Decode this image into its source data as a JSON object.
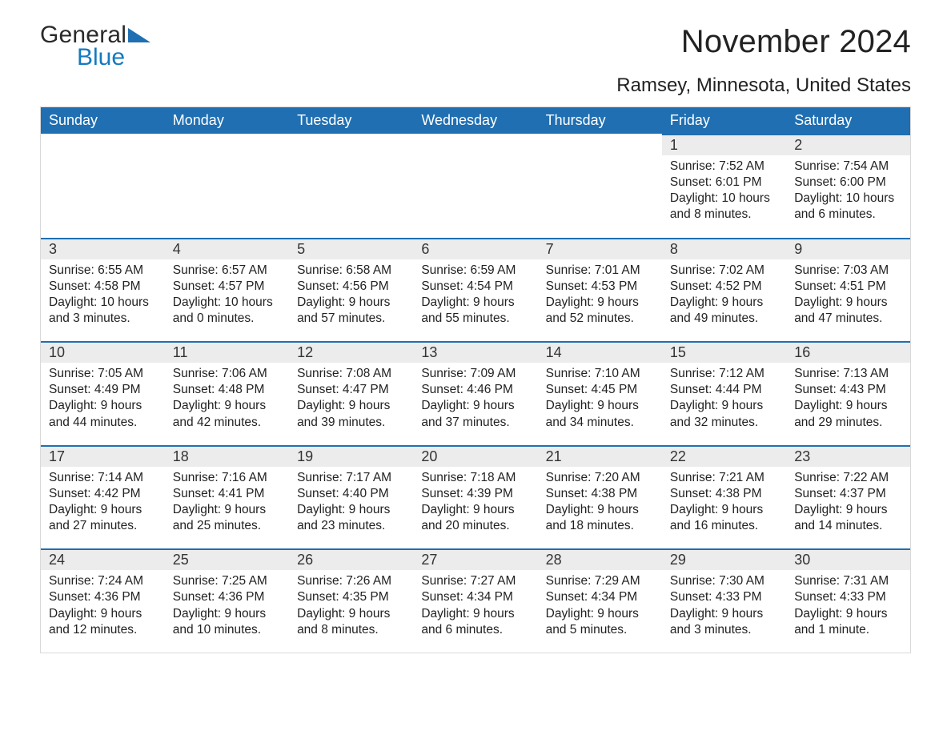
{
  "logo": {
    "word1": "General",
    "word2": "Blue",
    "mark_color": "#1f6fb2",
    "text_dark": "#2a2a2a",
    "text_blue": "#147ac0"
  },
  "title": "November 2024",
  "location": "Ramsey, Minnesota, United States",
  "style": {
    "header_bg": "#1f6fb2",
    "header_text": "#ffffff",
    "daybar_bg": "#ececec",
    "daybar_border": "#1f6fb2",
    "body_bg": "#ffffff",
    "text_color": "#222222",
    "title_fontsize": 40,
    "location_fontsize": 24,
    "th_fontsize": 18,
    "daynum_fontsize": 18,
    "body_fontsize": 15.5
  },
  "columns": [
    "Sunday",
    "Monday",
    "Tuesday",
    "Wednesday",
    "Thursday",
    "Friday",
    "Saturday"
  ],
  "weeks": [
    [
      null,
      null,
      null,
      null,
      null,
      {
        "n": "1",
        "sunrise": "Sunrise: 7:52 AM",
        "sunset": "Sunset: 6:01 PM",
        "day1": "Daylight: 10 hours",
        "day2": "and 8 minutes."
      },
      {
        "n": "2",
        "sunrise": "Sunrise: 7:54 AM",
        "sunset": "Sunset: 6:00 PM",
        "day1": "Daylight: 10 hours",
        "day2": "and 6 minutes."
      }
    ],
    [
      {
        "n": "3",
        "sunrise": "Sunrise: 6:55 AM",
        "sunset": "Sunset: 4:58 PM",
        "day1": "Daylight: 10 hours",
        "day2": "and 3 minutes."
      },
      {
        "n": "4",
        "sunrise": "Sunrise: 6:57 AM",
        "sunset": "Sunset: 4:57 PM",
        "day1": "Daylight: 10 hours",
        "day2": "and 0 minutes."
      },
      {
        "n": "5",
        "sunrise": "Sunrise: 6:58 AM",
        "sunset": "Sunset: 4:56 PM",
        "day1": "Daylight: 9 hours",
        "day2": "and 57 minutes."
      },
      {
        "n": "6",
        "sunrise": "Sunrise: 6:59 AM",
        "sunset": "Sunset: 4:54 PM",
        "day1": "Daylight: 9 hours",
        "day2": "and 55 minutes."
      },
      {
        "n": "7",
        "sunrise": "Sunrise: 7:01 AM",
        "sunset": "Sunset: 4:53 PM",
        "day1": "Daylight: 9 hours",
        "day2": "and 52 minutes."
      },
      {
        "n": "8",
        "sunrise": "Sunrise: 7:02 AM",
        "sunset": "Sunset: 4:52 PM",
        "day1": "Daylight: 9 hours",
        "day2": "and 49 minutes."
      },
      {
        "n": "9",
        "sunrise": "Sunrise: 7:03 AM",
        "sunset": "Sunset: 4:51 PM",
        "day1": "Daylight: 9 hours",
        "day2": "and 47 minutes."
      }
    ],
    [
      {
        "n": "10",
        "sunrise": "Sunrise: 7:05 AM",
        "sunset": "Sunset: 4:49 PM",
        "day1": "Daylight: 9 hours",
        "day2": "and 44 minutes."
      },
      {
        "n": "11",
        "sunrise": "Sunrise: 7:06 AM",
        "sunset": "Sunset: 4:48 PM",
        "day1": "Daylight: 9 hours",
        "day2": "and 42 minutes."
      },
      {
        "n": "12",
        "sunrise": "Sunrise: 7:08 AM",
        "sunset": "Sunset: 4:47 PM",
        "day1": "Daylight: 9 hours",
        "day2": "and 39 minutes."
      },
      {
        "n": "13",
        "sunrise": "Sunrise: 7:09 AM",
        "sunset": "Sunset: 4:46 PM",
        "day1": "Daylight: 9 hours",
        "day2": "and 37 minutes."
      },
      {
        "n": "14",
        "sunrise": "Sunrise: 7:10 AM",
        "sunset": "Sunset: 4:45 PM",
        "day1": "Daylight: 9 hours",
        "day2": "and 34 minutes."
      },
      {
        "n": "15",
        "sunrise": "Sunrise: 7:12 AM",
        "sunset": "Sunset: 4:44 PM",
        "day1": "Daylight: 9 hours",
        "day2": "and 32 minutes."
      },
      {
        "n": "16",
        "sunrise": "Sunrise: 7:13 AM",
        "sunset": "Sunset: 4:43 PM",
        "day1": "Daylight: 9 hours",
        "day2": "and 29 minutes."
      }
    ],
    [
      {
        "n": "17",
        "sunrise": "Sunrise: 7:14 AM",
        "sunset": "Sunset: 4:42 PM",
        "day1": "Daylight: 9 hours",
        "day2": "and 27 minutes."
      },
      {
        "n": "18",
        "sunrise": "Sunrise: 7:16 AM",
        "sunset": "Sunset: 4:41 PM",
        "day1": "Daylight: 9 hours",
        "day2": "and 25 minutes."
      },
      {
        "n": "19",
        "sunrise": "Sunrise: 7:17 AM",
        "sunset": "Sunset: 4:40 PM",
        "day1": "Daylight: 9 hours",
        "day2": "and 23 minutes."
      },
      {
        "n": "20",
        "sunrise": "Sunrise: 7:18 AM",
        "sunset": "Sunset: 4:39 PM",
        "day1": "Daylight: 9 hours",
        "day2": "and 20 minutes."
      },
      {
        "n": "21",
        "sunrise": "Sunrise: 7:20 AM",
        "sunset": "Sunset: 4:38 PM",
        "day1": "Daylight: 9 hours",
        "day2": "and 18 minutes."
      },
      {
        "n": "22",
        "sunrise": "Sunrise: 7:21 AM",
        "sunset": "Sunset: 4:38 PM",
        "day1": "Daylight: 9 hours",
        "day2": "and 16 minutes."
      },
      {
        "n": "23",
        "sunrise": "Sunrise: 7:22 AM",
        "sunset": "Sunset: 4:37 PM",
        "day1": "Daylight: 9 hours",
        "day2": "and 14 minutes."
      }
    ],
    [
      {
        "n": "24",
        "sunrise": "Sunrise: 7:24 AM",
        "sunset": "Sunset: 4:36 PM",
        "day1": "Daylight: 9 hours",
        "day2": "and 12 minutes."
      },
      {
        "n": "25",
        "sunrise": "Sunrise: 7:25 AM",
        "sunset": "Sunset: 4:36 PM",
        "day1": "Daylight: 9 hours",
        "day2": "and 10 minutes."
      },
      {
        "n": "26",
        "sunrise": "Sunrise: 7:26 AM",
        "sunset": "Sunset: 4:35 PM",
        "day1": "Daylight: 9 hours",
        "day2": "and 8 minutes."
      },
      {
        "n": "27",
        "sunrise": "Sunrise: 7:27 AM",
        "sunset": "Sunset: 4:34 PM",
        "day1": "Daylight: 9 hours",
        "day2": "and 6 minutes."
      },
      {
        "n": "28",
        "sunrise": "Sunrise: 7:29 AM",
        "sunset": "Sunset: 4:34 PM",
        "day1": "Daylight: 9 hours",
        "day2": "and 5 minutes."
      },
      {
        "n": "29",
        "sunrise": "Sunrise: 7:30 AM",
        "sunset": "Sunset: 4:33 PM",
        "day1": "Daylight: 9 hours",
        "day2": "and 3 minutes."
      },
      {
        "n": "30",
        "sunrise": "Sunrise: 7:31 AM",
        "sunset": "Sunset: 4:33 PM",
        "day1": "Daylight: 9 hours",
        "day2": "and 1 minute."
      }
    ]
  ]
}
